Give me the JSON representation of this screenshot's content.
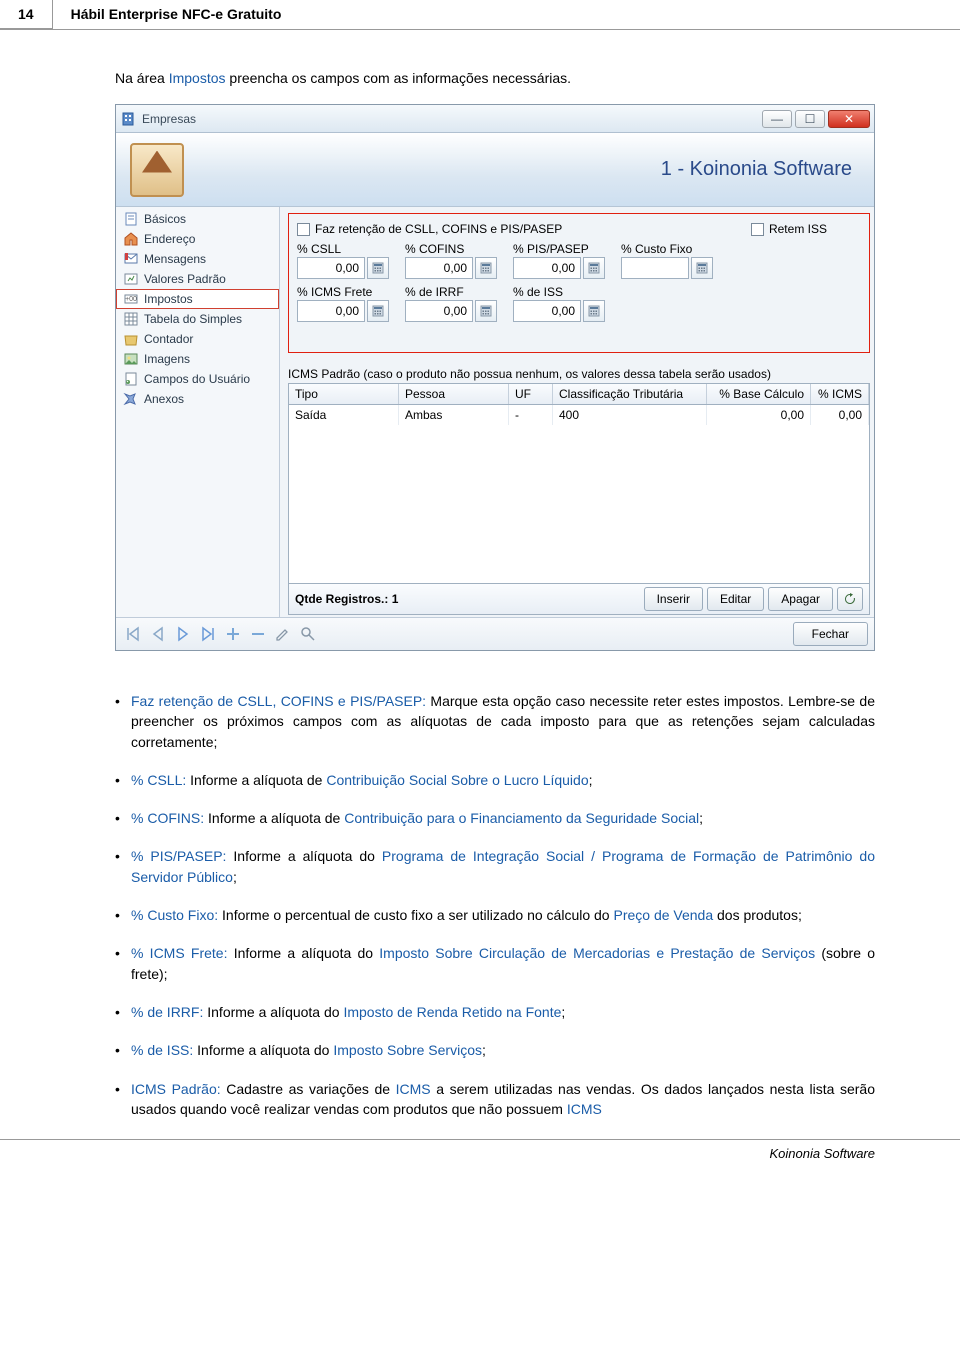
{
  "page": {
    "number": "14",
    "title": "Hábil Enterprise NFC-e Gratuito",
    "footer": "Koinonia Software"
  },
  "intro": {
    "prefix": "Na área ",
    "link": "Impostos",
    "suffix": " preencha os campos com as informações necessárias."
  },
  "window": {
    "title": "Empresas",
    "banner_text": "1 - Koinonia Software",
    "sidebar": [
      {
        "label": "Básicos"
      },
      {
        "label": "Endereço"
      },
      {
        "label": "Mensagens"
      },
      {
        "label": "Valores Padrão"
      },
      {
        "label": "Impostos"
      },
      {
        "label": "Tabela do Simples"
      },
      {
        "label": "Contador"
      },
      {
        "label": "Imagens"
      },
      {
        "label": "Campos do Usuário"
      },
      {
        "label": "Anexos"
      }
    ],
    "selected_index": 4,
    "chk1": "Faz retenção de CSLL, COFINS e PIS/PASEP",
    "chk2": "Retem ISS",
    "row1_labels": [
      "% CSLL",
      "% COFINS",
      "% PIS/PASEP",
      "% Custo Fixo"
    ],
    "row1_values": [
      "0,00",
      "0,00",
      "0,00",
      ""
    ],
    "row2_labels": [
      "% ICMS Frete",
      "% de IRRF",
      "% de ISS"
    ],
    "row2_values": [
      "0,00",
      "0,00",
      "0,00"
    ],
    "grid_label": "ICMS Padrão (caso o produto não possua nenhum, os valores dessa tabela serão usados)",
    "grid_headers": [
      "Tipo",
      "Pessoa",
      "UF",
      "Classificação Tributária",
      "% Base Cálculo",
      "% ICMS"
    ],
    "grid_row": [
      "Saída",
      "Ambas",
      "-",
      "400",
      "0,00",
      "0,00"
    ],
    "reg_count_label": "Qtde Registros.:",
    "reg_count": "1",
    "btn_insert": "Inserir",
    "btn_edit": "Editar",
    "btn_delete": "Apagar",
    "btn_close": "Fechar"
  },
  "bullets": {
    "b1": {
      "lead": "Faz retenção de CSLL, COFINS e PIS/PASEP:",
      "text": " Marque esta opção caso necessite reter estes impostos. Lembre-se de preencher os próximos campos com as alíquotas de cada imposto para que as retenções sejam calculadas corretamente;"
    },
    "b2": {
      "lead": "% CSLL:",
      "mid": " Informe a alíquota de ",
      "link": "Contribuição Social Sobre o Lucro Líquido",
      "tail": ";"
    },
    "b3": {
      "lead": "% COFINS:",
      "mid": " Informe a alíquota de ",
      "link": "Contribuição para o Financiamento da Seguridade Social",
      "tail": ";"
    },
    "b4": {
      "lead": "% PIS/PASEP:",
      "mid": " Informe a alíquota do ",
      "link": "Programa de Integração Social / Programa de Formação de Patrimônio do Servidor Público",
      "tail": ";"
    },
    "b5": {
      "lead": "% Custo Fixo:",
      "mid": " Informe o percentual de custo fixo a ser utilizado no cálculo do ",
      "link": "Preço de Venda",
      "tail": " dos produtos;"
    },
    "b6": {
      "lead": "% ICMS Frete:",
      "mid": " Informe a alíquota do ",
      "link": "Imposto Sobre Circulação de Mercadorias e Prestação de Serviços",
      "tail": " (sobre o frete);"
    },
    "b7": {
      "lead": "% de IRRF:",
      "mid": " Informe a alíquota do ",
      "link": "Imposto de Renda Retido na Fonte",
      "tail": ";"
    },
    "b8": {
      "lead": "% de ISS:",
      "mid": " Informe a alíquota do ",
      "link": "Imposto Sobre Serviços",
      "tail": ";"
    },
    "b9": {
      "lead": "ICMS Padrão:",
      "mid1": " Cadastre as variações de ",
      "link1": "ICMS",
      "mid2": " a serem utilizadas nas vendas. Os dados lançados nesta lista serão usados quando você realizar vendas com produtos que não possuem ",
      "link2": "ICMS"
    }
  }
}
